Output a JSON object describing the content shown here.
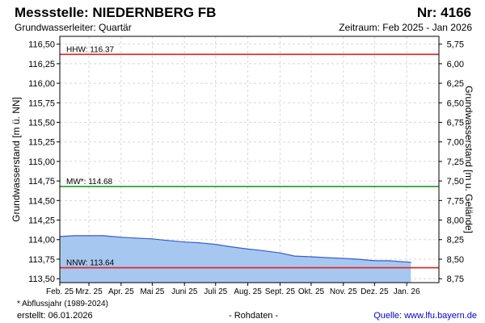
{
  "header": {
    "title": "Messstelle: NIEDERNBERG FB",
    "nr": "Nr: 4166",
    "aquifer": "Grundwasserleiter: Quartär",
    "period": "Zeitraum: Feb 2025 - Jan 2026"
  },
  "footer": {
    "footnote": "* Abflussjahr (1989-2024)",
    "created": "erstellt:  06.01.2026",
    "rawdata": "- Rohdaten -",
    "source": "Quelle:  www.lfu.bayern.de"
  },
  "colors": {
    "area_fill": "#a6c8f0",
    "series_line": "#3a5bd0",
    "hhw_line": "#e02020",
    "mw_line": "#1f9a1f",
    "nnw_line": "#e02020",
    "grid": "#d8d8d8"
  },
  "chart_data": {
    "type": "area",
    "ylabel": "Grundwasserstand [m ü. NN]",
    "y2label": "Grundwasserstand [m u. Gelände]",
    "ylim": [
      113.45,
      116.6
    ],
    "y_ticks": [
      113.5,
      113.75,
      114.0,
      114.25,
      114.5,
      114.75,
      115.0,
      115.25,
      115.5,
      115.75,
      116.0,
      116.25,
      116.5
    ],
    "y_tick_labels": [
      "113,50",
      "113,75",
      "114,00",
      "114,25",
      "114,50",
      "114,75",
      "115,00",
      "115,25",
      "115,50",
      "115,75",
      "116,00",
      "116,25",
      "116,50"
    ],
    "y2_offset": 122.25,
    "y2_ticks": [
      5.75,
      6.0,
      6.25,
      6.5,
      6.75,
      7.0,
      7.25,
      7.5,
      7.75,
      8.0,
      8.25,
      8.5,
      8.75
    ],
    "y2_tick_labels": [
      "5,75",
      "6,00",
      "6,25",
      "6,50",
      "6,75",
      "7,00",
      "7,25",
      "7,50",
      "7,75",
      "8,00",
      "8,25",
      "8,50",
      "8,75"
    ],
    "xlim": [
      "2025-02-01",
      "2026-02-01"
    ],
    "x_ticks": [
      "2025-02-01",
      "2025-03-01",
      "2025-04-01",
      "2025-05-01",
      "2025-06-01",
      "2025-07-01",
      "2025-08-01",
      "2025-09-01",
      "2025-10-01",
      "2025-11-01",
      "2025-12-01",
      "2026-01-01"
    ],
    "x_tick_labels": [
      "Feb. 25",
      "Mrz. 25",
      "Apr. 25",
      "Mai 25",
      "Juni 25",
      "Juli 25",
      "Aug. 25",
      "Sept. 25",
      "Okt. 25",
      "Nov. 25",
      "Dez. 25",
      "Jan. 26"
    ],
    "grid": true,
    "series": [
      {
        "x": [
          "2025-02-01",
          "2025-02-15",
          "2025-03-01",
          "2025-03-15",
          "2025-04-01",
          "2025-04-15",
          "2025-05-01",
          "2025-05-15",
          "2025-06-01",
          "2025-06-15",
          "2025-07-01",
          "2025-07-15",
          "2025-08-01",
          "2025-08-15",
          "2025-09-01",
          "2025-09-15",
          "2025-10-01",
          "2025-10-15",
          "2025-11-01",
          "2025-11-15",
          "2025-12-01",
          "2025-12-15",
          "2026-01-05"
        ],
        "values": [
          114.04,
          114.05,
          114.05,
          114.05,
          114.03,
          114.02,
          114.01,
          113.99,
          113.97,
          113.96,
          113.94,
          113.91,
          113.88,
          113.86,
          113.83,
          113.79,
          113.78,
          113.77,
          113.76,
          113.75,
          113.73,
          113.73,
          113.71
        ]
      }
    ],
    "reference_lines": [
      {
        "label": "HHW: 116.37",
        "value": 116.37,
        "color": "#e02020"
      },
      {
        "label": "MW*: 114.68",
        "value": 114.68,
        "color": "#1f9a1f"
      },
      {
        "label": "NNW: 113.64",
        "value": 113.64,
        "color": "#e02020"
      }
    ]
  }
}
